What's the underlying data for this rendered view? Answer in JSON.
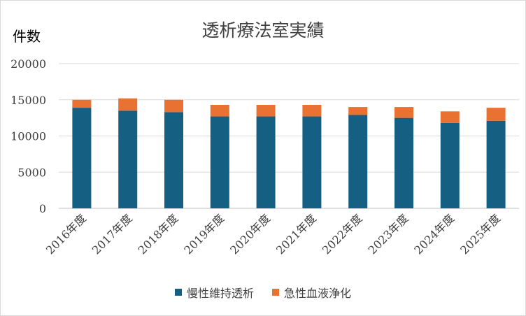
{
  "chart_data": {
    "type": "bar",
    "stacked": true,
    "title": "透析療法室実績",
    "ylabel": "件数",
    "xlabel": "",
    "ylim": [
      0,
      20000
    ],
    "yticks": [
      "0",
      "5000",
      "10000",
      "15000",
      "20000"
    ],
    "categories": [
      "2016年度",
      "2017年度",
      "2018年度",
      "2019年度",
      "2020年度",
      "2021年度",
      "2022年度",
      "2023年度",
      "2024年度",
      "2025年度"
    ],
    "series": [
      {
        "name": "慢性維持透析",
        "color": "#156082",
        "values": [
          13900,
          13500,
          13300,
          12700,
          12700,
          12700,
          12900,
          12500,
          11800,
          12100
        ]
      },
      {
        "name": "急性血液浄化",
        "color": "#e97132",
        "values": [
          1100,
          1700,
          1700,
          1600,
          1600,
          1600,
          1100,
          1500,
          1600,
          1800
        ]
      }
    ],
    "grid": true,
    "legend": "bottom"
  }
}
